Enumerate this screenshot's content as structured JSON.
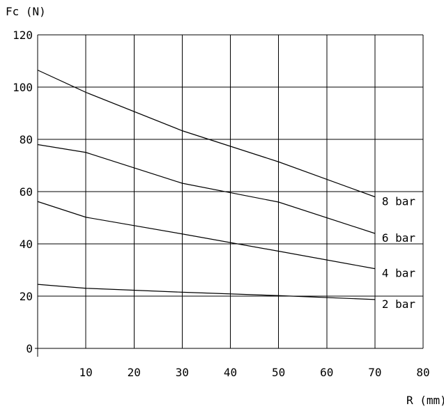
{
  "chart_data": {
    "type": "line",
    "title": "",
    "xlabel": "R (mm)",
    "ylabel": "Fc (N)",
    "xlim": [
      0,
      80
    ],
    "ylim": [
      0,
      120
    ],
    "x_ticks": [
      10,
      20,
      30,
      40,
      50,
      60,
      70,
      80
    ],
    "y_ticks": [
      0,
      20,
      40,
      60,
      80,
      100,
      120
    ],
    "grid": true,
    "series": [
      {
        "name": "8 bar",
        "x": [
          0,
          10,
          30,
          50,
          70
        ],
        "y": [
          106.5,
          98,
          83.3,
          71.4,
          58
        ]
      },
      {
        "name": "6 bar",
        "x": [
          0,
          10,
          30,
          50,
          70
        ],
        "y": [
          78,
          75,
          63.2,
          56,
          44
        ]
      },
      {
        "name": "4 bar",
        "x": [
          0,
          10,
          30,
          50,
          70
        ],
        "y": [
          56.2,
          50.2,
          43.8,
          37.2,
          30.5
        ]
      },
      {
        "name": "2 bar",
        "x": [
          0,
          10,
          30,
          50,
          70
        ],
        "y": [
          24.5,
          23,
          21.5,
          20.2,
          18.7
        ]
      }
    ]
  }
}
